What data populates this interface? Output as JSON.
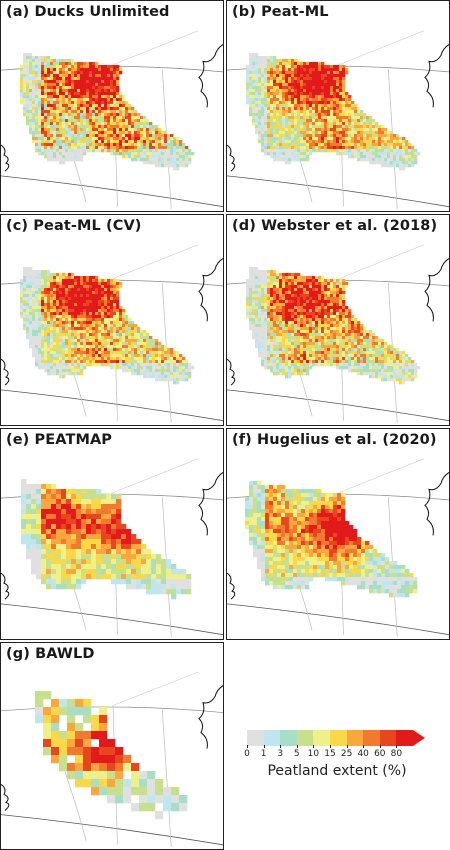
{
  "panels": [
    {
      "title": "(a) Ducks Unlimited",
      "dataset": "ducks_unlimited"
    },
    {
      "title": "(b) Peat-ML",
      "dataset": "peat_ml"
    },
    {
      "title": "(c) Peat-ML (CV)",
      "dataset": "peat_ml_cv"
    },
    {
      "title": "(d) Webster et al. (2018)",
      "dataset": "webster_2018"
    },
    {
      "title": "(e) PEATMAP",
      "dataset": "peatmap"
    },
    {
      "title": "(f) Hugelius et al. (2020)",
      "dataset": "hugelius_2020"
    },
    {
      "title": "(g) BAWLD",
      "dataset": "bawld"
    }
  ],
  "legend": {
    "label": "Peatland extent (%)",
    "ticks": [
      "0",
      "1",
      "3",
      "5",
      "10",
      "15",
      "25",
      "40",
      "60",
      "80"
    ],
    "colors": [
      "#e0e0e0",
      "#bfe6ee",
      "#a8ddc6",
      "#c8df8e",
      "#eef08a",
      "#fbd84a",
      "#f9a73e",
      "#f07a2e",
      "#e8461f",
      "#e31a1c"
    ]
  }
}
